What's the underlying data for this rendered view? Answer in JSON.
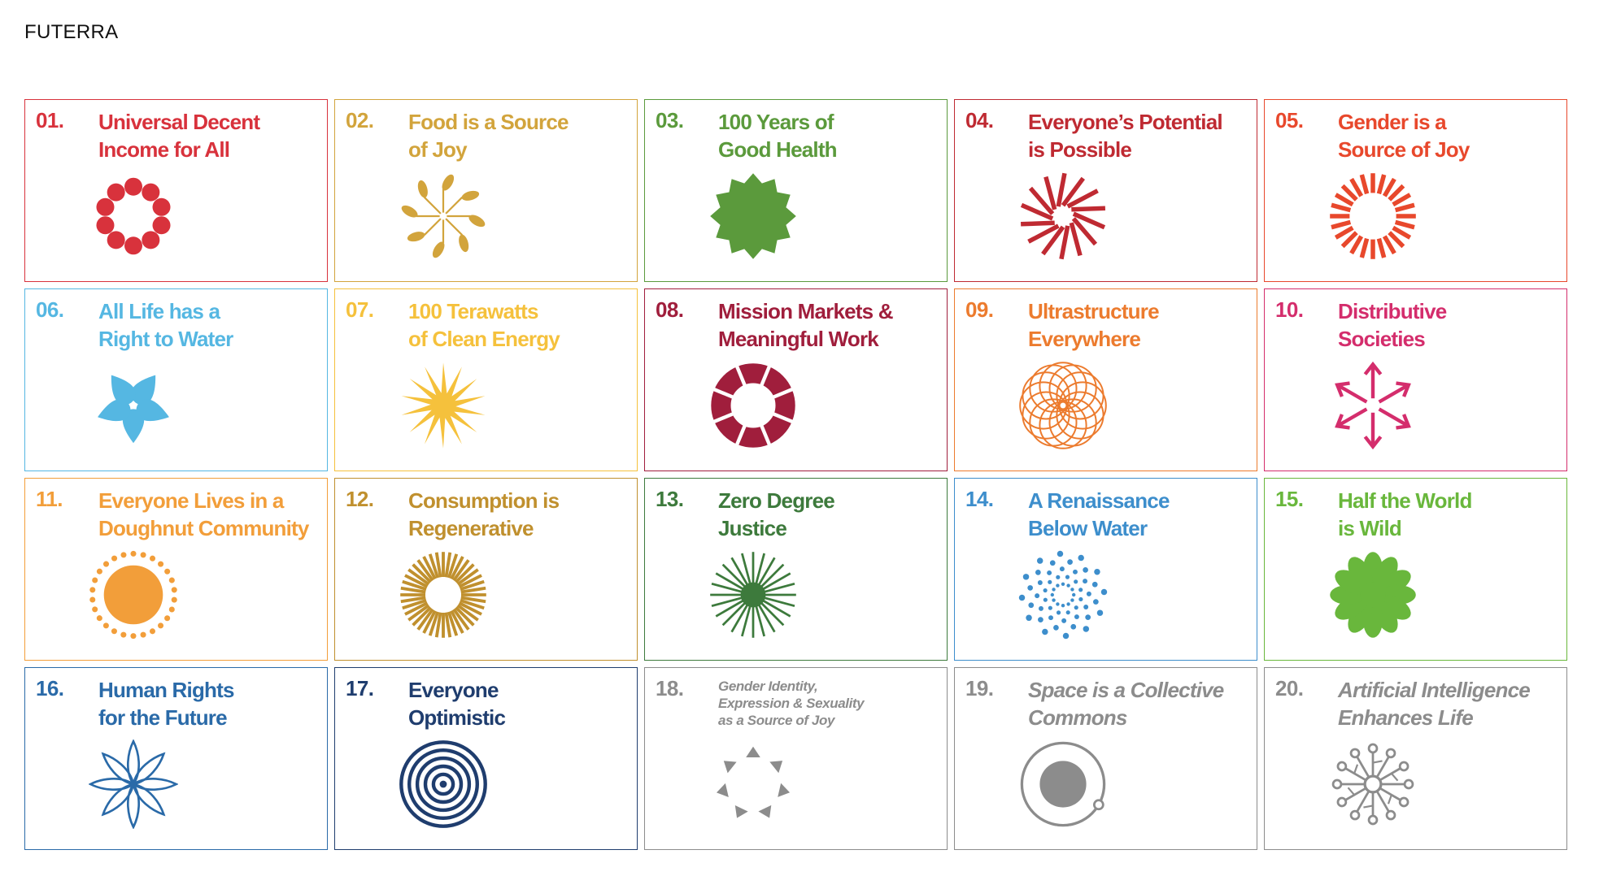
{
  "brand": "FUTERRA",
  "cards": [
    {
      "num": "01.",
      "title": "Universal Decent\nIncome for All",
      "color": "#d8323c",
      "icon": "ring-of-dots-icon"
    },
    {
      "num": "02.",
      "title": "Food is a Source\nof Joy",
      "color": "#d2a43c",
      "icon": "seed-burst-icon"
    },
    {
      "num": "03.",
      "title": "100 Years of\nGood Health",
      "color": "#5b9a3c",
      "icon": "starburst-icon"
    },
    {
      "num": "04.",
      "title": "Everyone’s Potential\nis Possible",
      "color": "#bf2a32",
      "icon": "spiral-rays-icon"
    },
    {
      "num": "05.",
      "title": "Gender is a\nSource of Joy",
      "color": "#e8482c",
      "icon": "ray-ring-icon"
    },
    {
      "num": "06.",
      "title": "All Life has a\nRight to Water",
      "color": "#55b7e2",
      "icon": "water-drops-icon"
    },
    {
      "num": "07.",
      "title": "100 Terawatts\nof Clean Energy",
      "color": "#f5c13c",
      "icon": "sun-icon"
    },
    {
      "num": "08.",
      "title": "Mission Markets &\nMeaningful Work",
      "color": "#a01e3c",
      "icon": "segmented-ring-icon"
    },
    {
      "num": "09.",
      "title": "Ultrastructure\nEverywhere",
      "color": "#ec7b2e",
      "icon": "woven-circle-icon"
    },
    {
      "num": "10.",
      "title": "Distributive\nSocieties",
      "color": "#d42d6c",
      "icon": "outward-arrows-icon"
    },
    {
      "num": "11.",
      "title": "Everyone Lives in a\nDoughnut Community",
      "color": "#f29e3a",
      "icon": "dotted-sun-icon"
    },
    {
      "num": "12.",
      "title": "Consumption is\nRegenerative",
      "color": "#c0902e",
      "icon": "radiant-ring-icon"
    },
    {
      "num": "13.",
      "title": "Zero Degree\nJustice",
      "color": "#3d7a3c",
      "icon": "line-burst-icon"
    },
    {
      "num": "14.",
      "title": "A Renaissance\nBelow Water",
      "color": "#3d8ecc",
      "icon": "dot-spiral-icon"
    },
    {
      "num": "15.",
      "title": "Half the World\nis Wild",
      "color": "#69b73c",
      "icon": "flower-icon"
    },
    {
      "num": "16.",
      "title": "Human Rights\nfor the Future",
      "color": "#2a6aa8",
      "icon": "lotus-star-icon"
    },
    {
      "num": "17.",
      "title": "Everyone\nOptimistic",
      "color": "#1f3d6e",
      "icon": "concentric-circles-icon"
    },
    {
      "num": "18.",
      "title": "Gender Identity,\nExpression & Sexuality\nas a Source of Joy",
      "color": "#8c8c8c",
      "icon": "triangle-ring-icon",
      "style": "small"
    },
    {
      "num": "19.",
      "title": "Space is a Collective\nCommons",
      "color": "#8c8c8c",
      "icon": "orbit-icon",
      "style": "italic"
    },
    {
      "num": "20.",
      "title": "Artificial Intelligence\nEnhances Life",
      "color": "#8c8c8c",
      "icon": "network-node-icon",
      "style": "italic"
    }
  ]
}
